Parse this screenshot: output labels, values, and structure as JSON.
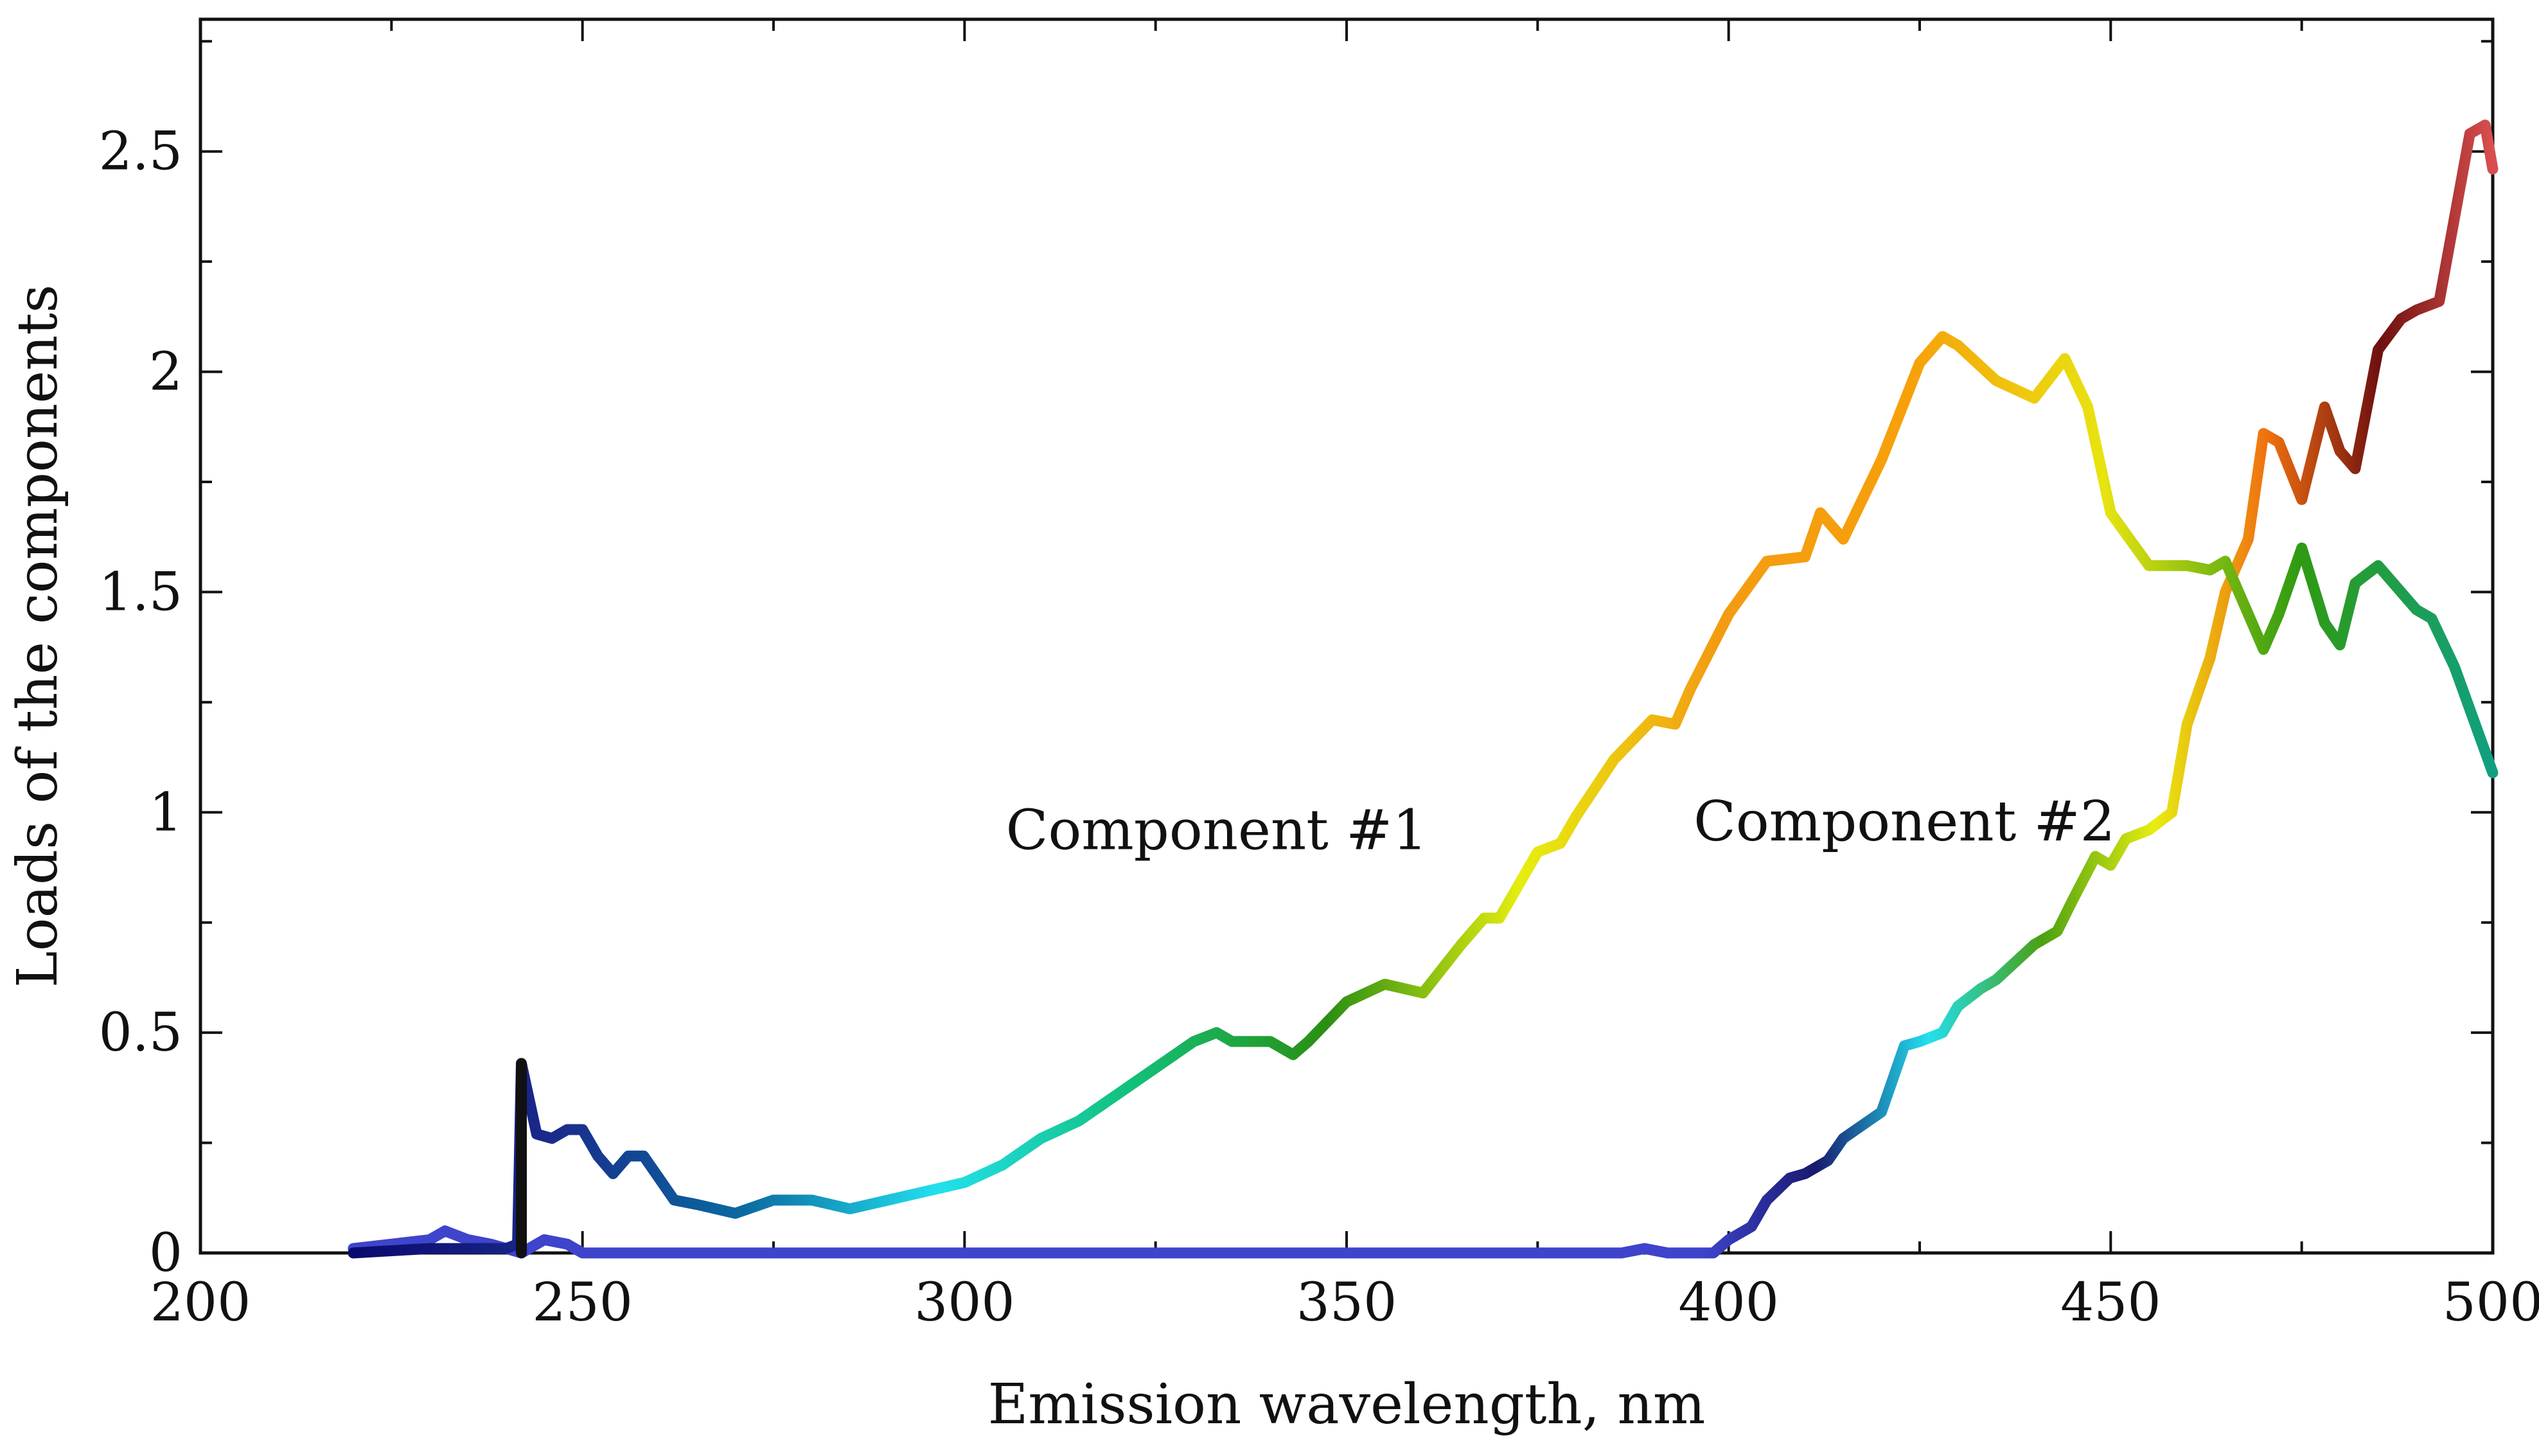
{
  "chart_data": {
    "type": "line",
    "title": "",
    "xlabel": "Emission wavelength, nm",
    "ylabel": "Loads of the components",
    "xlim": [
      200,
      500
    ],
    "ylim": [
      0,
      2.8
    ],
    "xticks": [
      200,
      250,
      300,
      350,
      400,
      450,
      500
    ],
    "xtick_labels": [
      "200",
      "250",
      "300",
      "350",
      "400",
      "450",
      "500"
    ],
    "yticks": [
      0,
      0.5,
      1,
      1.5,
      2,
      2.5
    ],
    "ytick_labels": [
      "0",
      "0.5",
      "1",
      "1.5",
      "2",
      "2.5"
    ],
    "grid": false,
    "annotations": [
      {
        "text": "Component #1",
        "x": 333,
        "y": 0.96
      },
      {
        "text": "Component #2",
        "x": 423,
        "y": 0.98
      }
    ],
    "colors": {
      "component1_gradient": [
        "#0a0a6e",
        "#1a2a8a",
        "#0a6aa0",
        "#22e0ee",
        "#12c07a",
        "#2a8f12",
        "#e6ee10",
        "#f39c12",
        "#f7a00a",
        "#e8e410",
        "#2f9a12",
        "#10a080"
      ],
      "component2_gradient": [
        "#3e44cc",
        "#181a6e",
        "#22e0ee",
        "#4aa012",
        "#e6ee10",
        "#f07010",
        "#6e1010",
        "#d94f4f"
      ],
      "spike": "#111111"
    },
    "series": [
      {
        "name": "Component #1",
        "x": [
          220,
          230,
          240,
          241.5,
          242,
          244,
          246,
          248,
          250,
          252,
          254,
          256,
          258,
          260,
          262,
          265,
          270,
          275,
          280,
          285,
          290,
          295,
          300,
          305,
          310,
          315,
          320,
          325,
          330,
          333,
          335,
          340,
          343,
          345,
          350,
          355,
          360,
          365,
          368,
          370,
          375,
          378,
          380,
          385,
          390,
          393,
          395,
          400,
          405,
          410,
          412,
          415,
          420,
          425,
          428,
          430,
          435,
          440,
          444,
          447,
          450,
          455,
          460,
          463,
          465,
          470,
          472,
          475,
          478,
          480,
          482,
          485,
          490,
          492,
          495,
          500
        ],
        "y": [
          0.0,
          0.01,
          0.01,
          0.02,
          0.43,
          0.27,
          0.26,
          0.28,
          0.28,
          0.22,
          0.18,
          0.22,
          0.22,
          0.17,
          0.12,
          0.11,
          0.09,
          0.12,
          0.12,
          0.1,
          0.12,
          0.14,
          0.16,
          0.2,
          0.26,
          0.3,
          0.36,
          0.42,
          0.48,
          0.5,
          0.48,
          0.48,
          0.45,
          0.48,
          0.57,
          0.61,
          0.59,
          0.7,
          0.76,
          0.76,
          0.91,
          0.93,
          0.99,
          1.12,
          1.21,
          1.2,
          1.28,
          1.45,
          1.57,
          1.58,
          1.68,
          1.62,
          1.8,
          2.02,
          2.08,
          2.06,
          1.98,
          1.94,
          2.03,
          1.92,
          1.68,
          1.56,
          1.56,
          1.55,
          1.57,
          1.37,
          1.45,
          1.6,
          1.43,
          1.38,
          1.52,
          1.56,
          1.46,
          1.44,
          1.33,
          1.09
        ]
      },
      {
        "name": "Component #2",
        "x": [
          220,
          225,
          230,
          232,
          235,
          238,
          240,
          242,
          245,
          248,
          250,
          255,
          260,
          270,
          280,
          300,
          350,
          380,
          386,
          389,
          392,
          395,
          398,
          400,
          403,
          405,
          408,
          410,
          413,
          415,
          420,
          423,
          425,
          428,
          430,
          433,
          435,
          440,
          443,
          445,
          448,
          450,
          452,
          455,
          458,
          460,
          463,
          465,
          468,
          470,
          472,
          475,
          478,
          480,
          482,
          485,
          488,
          490,
          493,
          495,
          497,
          499,
          500
        ],
        "y": [
          0.01,
          0.02,
          0.03,
          0.05,
          0.03,
          0.02,
          0.01,
          0.0,
          0.03,
          0.02,
          0.0,
          0.0,
          0.0,
          0.0,
          0.0,
          0.0,
          0.0,
          0.0,
          0.0,
          0.01,
          0.0,
          0.0,
          0.0,
          0.03,
          0.06,
          0.12,
          0.17,
          0.18,
          0.21,
          0.26,
          0.32,
          0.47,
          0.48,
          0.5,
          0.56,
          0.6,
          0.62,
          0.7,
          0.73,
          0.8,
          0.9,
          0.88,
          0.94,
          0.96,
          1.0,
          1.2,
          1.35,
          1.5,
          1.62,
          1.86,
          1.84,
          1.71,
          1.92,
          1.82,
          1.78,
          2.05,
          2.12,
          2.14,
          2.16,
          2.35,
          2.54,
          2.56,
          2.46
        ]
      }
    ]
  }
}
